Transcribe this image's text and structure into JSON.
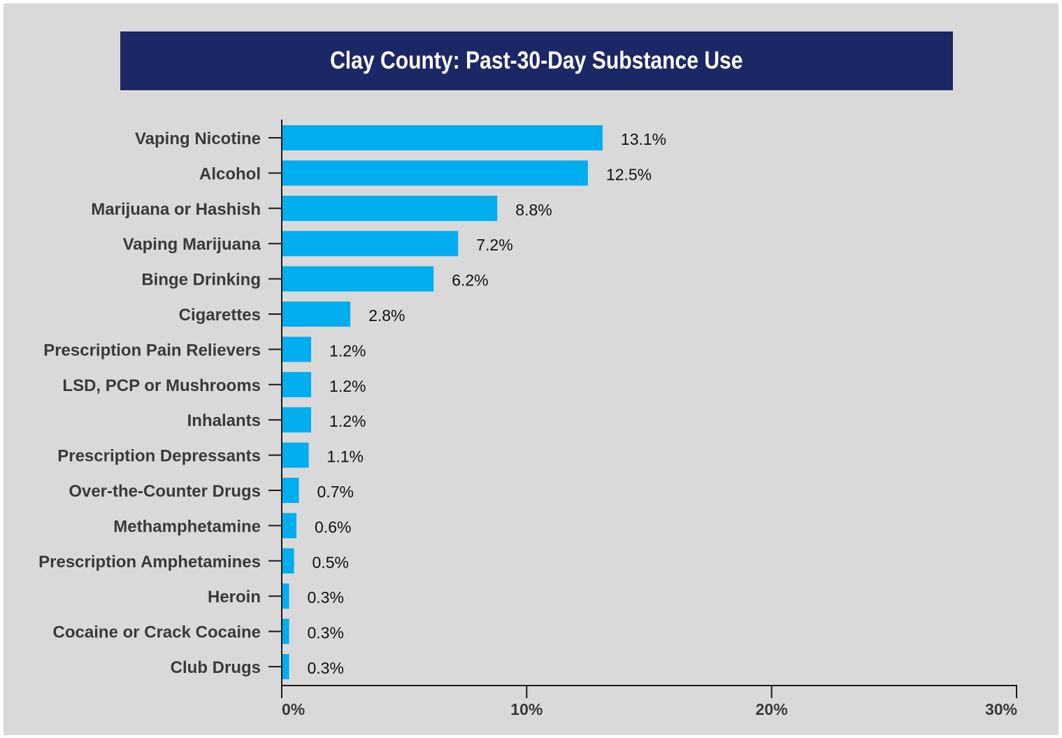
{
  "title": "Clay County: Past-30-Day Substance Use",
  "colors": {
    "background": "#d9d9d9",
    "title_bar": "#1c2765",
    "title_text": "#ffffff",
    "bar": "#00aeef",
    "axis": "#1a1a1a"
  },
  "chart_data": {
    "type": "bar",
    "orientation": "horizontal",
    "title": "Clay County: Past-30-Day Substance Use",
    "categories": [
      "Vaping Nicotine",
      "Alcohol",
      "Marijuana or Hashish",
      "Vaping Marijuana",
      "Binge Drinking",
      "Cigarettes",
      "Prescription Pain Relievers",
      "LSD, PCP or Mushrooms",
      "Inhalants",
      "Prescription Depressants",
      "Over-the-Counter Drugs",
      "Methamphetamine",
      "Prescription Amphetamines",
      "Heroin",
      "Cocaine or Crack Cocaine",
      "Club Drugs"
    ],
    "values": [
      13.1,
      12.5,
      8.8,
      7.2,
      6.2,
      2.8,
      1.2,
      1.2,
      1.2,
      1.1,
      0.7,
      0.6,
      0.5,
      0.3,
      0.3,
      0.3
    ],
    "value_labels": [
      "13.1%",
      "12.5%",
      "8.8%",
      "7.2%",
      "6.2%",
      "2.8%",
      "1.2%",
      "1.2%",
      "1.2%",
      "1.1%",
      "0.7%",
      "0.6%",
      "0.5%",
      "0.3%",
      "0.3%",
      "0.3%"
    ],
    "xlim": [
      0,
      30
    ],
    "xticks": [
      0,
      10,
      20,
      30
    ],
    "xtick_labels": [
      "0%",
      "10%",
      "20%",
      "30%"
    ],
    "xlabel": "",
    "ylabel": "",
    "grid": false,
    "legend": "none"
  }
}
